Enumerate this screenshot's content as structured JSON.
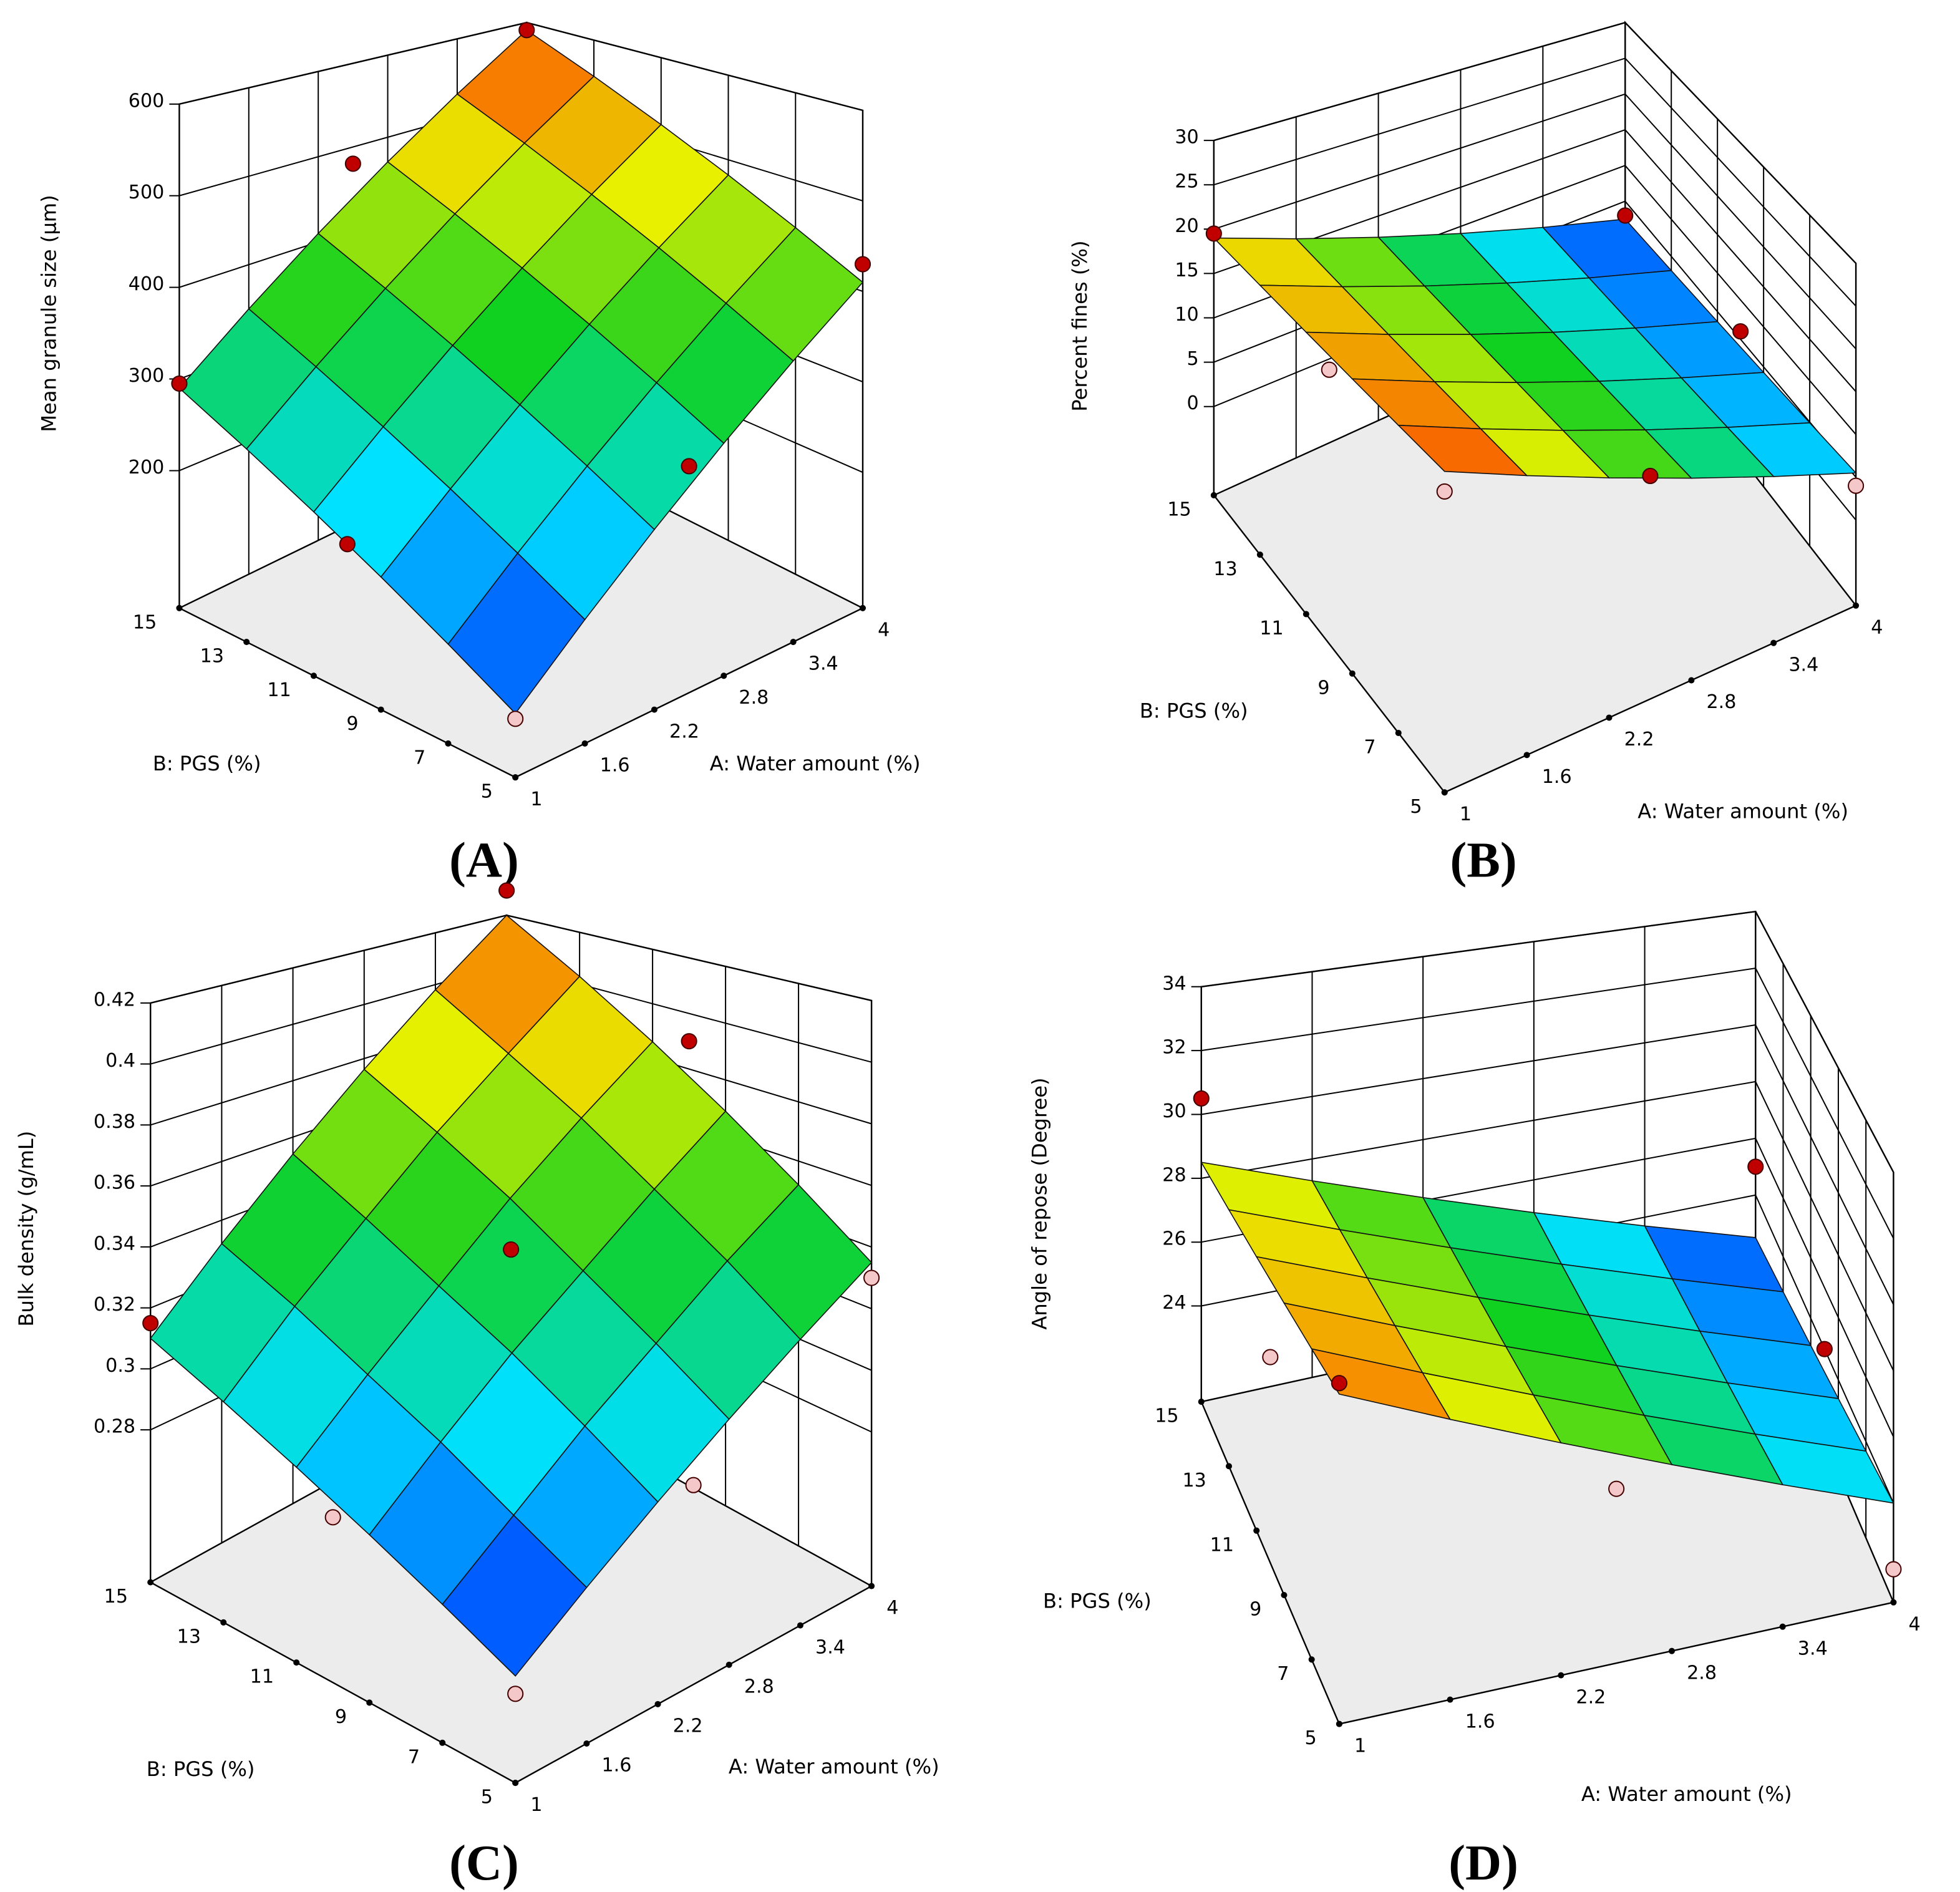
{
  "chart_data": [
    {
      "type": "surface",
      "label": "(A)",
      "x_label": "A: Water amount  (%)",
      "y_label": "B: PGS (%)",
      "z_label": "Mean granule size (µm)",
      "xlim": [
        1,
        4
      ],
      "xticks": [
        1,
        1.6,
        2.2,
        2.8,
        3.4,
        4
      ],
      "ylim": [
        5,
        15
      ],
      "yticks": [
        5,
        7,
        9,
        11,
        13,
        15
      ],
      "zlim": [
        50,
        600
      ],
      "zticks": [
        200,
        300,
        400,
        500,
        600
      ],
      "grid_x": [
        1,
        1.6,
        2.2,
        2.8,
        3.4,
        4
      ],
      "grid_y": [
        5,
        7,
        9,
        11,
        13,
        15
      ],
      "z": [
        [
          110,
          170,
          230,
          290,
          350,
          410
        ],
        [
          146,
          206,
          266,
          326,
          386,
          446
        ],
        [
          182,
          242,
          302,
          362,
          422,
          482
        ],
        [
          218,
          278,
          338,
          398,
          458,
          518
        ],
        [
          254,
          314,
          374,
          434,
          494,
          554
        ],
        [
          290,
          350,
          410,
          470,
          530,
          590
        ]
      ],
      "points": {
        "x": [
          1,
          1,
          1,
          2.5,
          4,
          4,
          2.5
        ],
        "y": [
          5,
          10,
          15,
          5,
          5,
          15,
          15
        ],
        "z": [
          105,
          200,
          295,
          280,
          430,
          590,
          480
        ]
      },
      "colormap": [
        "#0020ff",
        "#00e0ff",
        "#10d020",
        "#e8f000",
        "#ff3000"
      ],
      "point_colors": [
        "#c00000",
        "#f4c8c8"
      ]
    },
    {
      "type": "surface",
      "label": "(B)",
      "x_label": "A: Water amount  (%)",
      "y_label": "B: PGS (%)",
      "z_label": "Percent fines  (%)",
      "xlim": [
        1,
        4
      ],
      "xticks": [
        1,
        1.6,
        2.2,
        2.8,
        3.4,
        4
      ],
      "ylim": [
        5,
        15
      ],
      "yticks": [
        5,
        7,
        9,
        11,
        13,
        15
      ],
      "zlim": [
        -10,
        30
      ],
      "zticks": [
        0,
        5,
        10,
        15,
        20,
        25,
        30
      ],
      "grid_x": [
        1,
        1.6,
        2.2,
        2.8,
        3.4,
        4
      ],
      "grid_y": [
        5,
        7,
        9,
        11,
        13,
        15
      ],
      "z": [
        [
          22,
          18.7,
          15.4,
          12.1,
          8.8,
          5.5
        ],
        [
          21.4,
          18.1,
          14.8,
          11.5,
          8.2,
          4.9
        ],
        [
          20.8,
          17.5,
          14.2,
          10.9,
          7.6,
          4.3
        ],
        [
          20.2,
          16.9,
          13.6,
          10.3,
          7,
          3.7
        ],
        [
          19.6,
          16.3,
          13,
          9.7,
          6.4,
          3.1
        ],
        [
          19,
          15.7,
          12.4,
          9.1,
          5.8,
          2.5
        ]
      ],
      "points": {
        "x": [
          1,
          1,
          1,
          2.5,
          4,
          4,
          4
        ],
        "y": [
          5,
          10,
          15,
          5,
          5,
          10,
          15
        ],
        "z": [
          20,
          19,
          19.5,
          14,
          4,
          6,
          3
        ]
      },
      "colormap": [
        "#0020ff",
        "#00e0ff",
        "#10d020",
        "#e8f000",
        "#ff1000"
      ],
      "point_colors": [
        "#c00000",
        "#f4c8c8"
      ]
    },
    {
      "type": "surface",
      "label": "(C)",
      "x_label": "A: Water amount  (%)",
      "y_label": "B: PGS (%)",
      "z_label": "Bulk density  (g/mL)",
      "xlim": [
        1,
        4
      ],
      "xticks": [
        1,
        1.6,
        2.2,
        2.8,
        3.4,
        4
      ],
      "ylim": [
        5,
        15
      ],
      "yticks": [
        5,
        7,
        9,
        11,
        13,
        15
      ],
      "zlim": [
        0.23,
        0.42
      ],
      "zticks": [
        0.28,
        0.3,
        0.32,
        0.34,
        0.36,
        0.38,
        0.4,
        0.42
      ],
      "grid_x": [
        1,
        1.6,
        2.2,
        2.8,
        3.4,
        4
      ],
      "grid_y": [
        5,
        7,
        9,
        11,
        13,
        15
      ],
      "z": [
        [
          0.26,
          0.275,
          0.29,
          0.305,
          0.32,
          0.335
        ],
        [
          0.27,
          0.286,
          0.303,
          0.319,
          0.336,
          0.352
        ],
        [
          0.28,
          0.298,
          0.316,
          0.333,
          0.351,
          0.369
        ],
        [
          0.29,
          0.309,
          0.328,
          0.348,
          0.367,
          0.386
        ],
        [
          0.3,
          0.321,
          0.341,
          0.362,
          0.382,
          0.403
        ],
        [
          0.31,
          0.332,
          0.354,
          0.376,
          0.398,
          0.42
        ]
      ],
      "points": {
        "x": [
          4,
          4,
          2.5,
          4,
          1,
          2.5,
          1,
          1
        ],
        "y": [
          15,
          10,
          10,
          5,
          15,
          5,
          5,
          10
        ],
        "z": [
          0.43,
          0.39,
          0.34,
          0.33,
          0.315,
          0.29,
          0.255,
          0.28
        ]
      },
      "colormap": [
        "#0020ff",
        "#00e0ff",
        "#10d020",
        "#e8f000",
        "#ff4000"
      ],
      "point_colors": [
        "#c00000",
        "#f4c8c8"
      ]
    },
    {
      "type": "surface",
      "label": "(D)",
      "x_label": "A: Water amount  (%)",
      "y_label": "B: PGS (%)",
      "z_label": "Angle of repose  (Degree)",
      "xlim": [
        1,
        4
      ],
      "xticks": [
        1,
        1.6,
        2.2,
        2.8,
        3.4,
        4
      ],
      "ylim": [
        5,
        15
      ],
      "yticks": [
        5,
        7,
        9,
        11,
        13,
        15
      ],
      "zlim": [
        21,
        34
      ],
      "zticks": [
        24,
        26,
        28,
        30,
        32,
        34
      ],
      "grid_x": [
        1,
        1.6,
        2.2,
        2.8,
        3.4,
        4
      ],
      "grid_y": [
        5,
        7,
        9,
        11,
        13,
        15
      ],
      "z": [
        [
          30,
          28.8,
          27.6,
          26.4,
          25.2,
          24
        ],
        [
          29.7,
          28.5,
          27.3,
          26.1,
          24.9,
          23.7
        ],
        [
          29.4,
          28.2,
          27,
          25.8,
          24.6,
          23.4
        ],
        [
          29.1,
          27.9,
          26.7,
          25.5,
          24.3,
          23.1
        ],
        [
          28.8,
          27.6,
          26.4,
          25.2,
          24,
          22.8
        ],
        [
          28.5,
          27.3,
          26.1,
          24.9,
          23.7,
          22.5
        ]
      ],
      "points": {
        "x": [
          1,
          1,
          1,
          4,
          4,
          4,
          2.5
        ],
        "y": [
          15,
          10,
          5,
          15,
          10,
          5,
          5
        ],
        "z": [
          30.5,
          27,
          30.3,
          25,
          24,
          22,
          26
        ]
      },
      "colormap": [
        "#0020ff",
        "#00e0ff",
        "#10d020",
        "#e8f000",
        "#ff5000"
      ],
      "point_colors": [
        "#c00000",
        "#f4c8c8"
      ]
    }
  ]
}
